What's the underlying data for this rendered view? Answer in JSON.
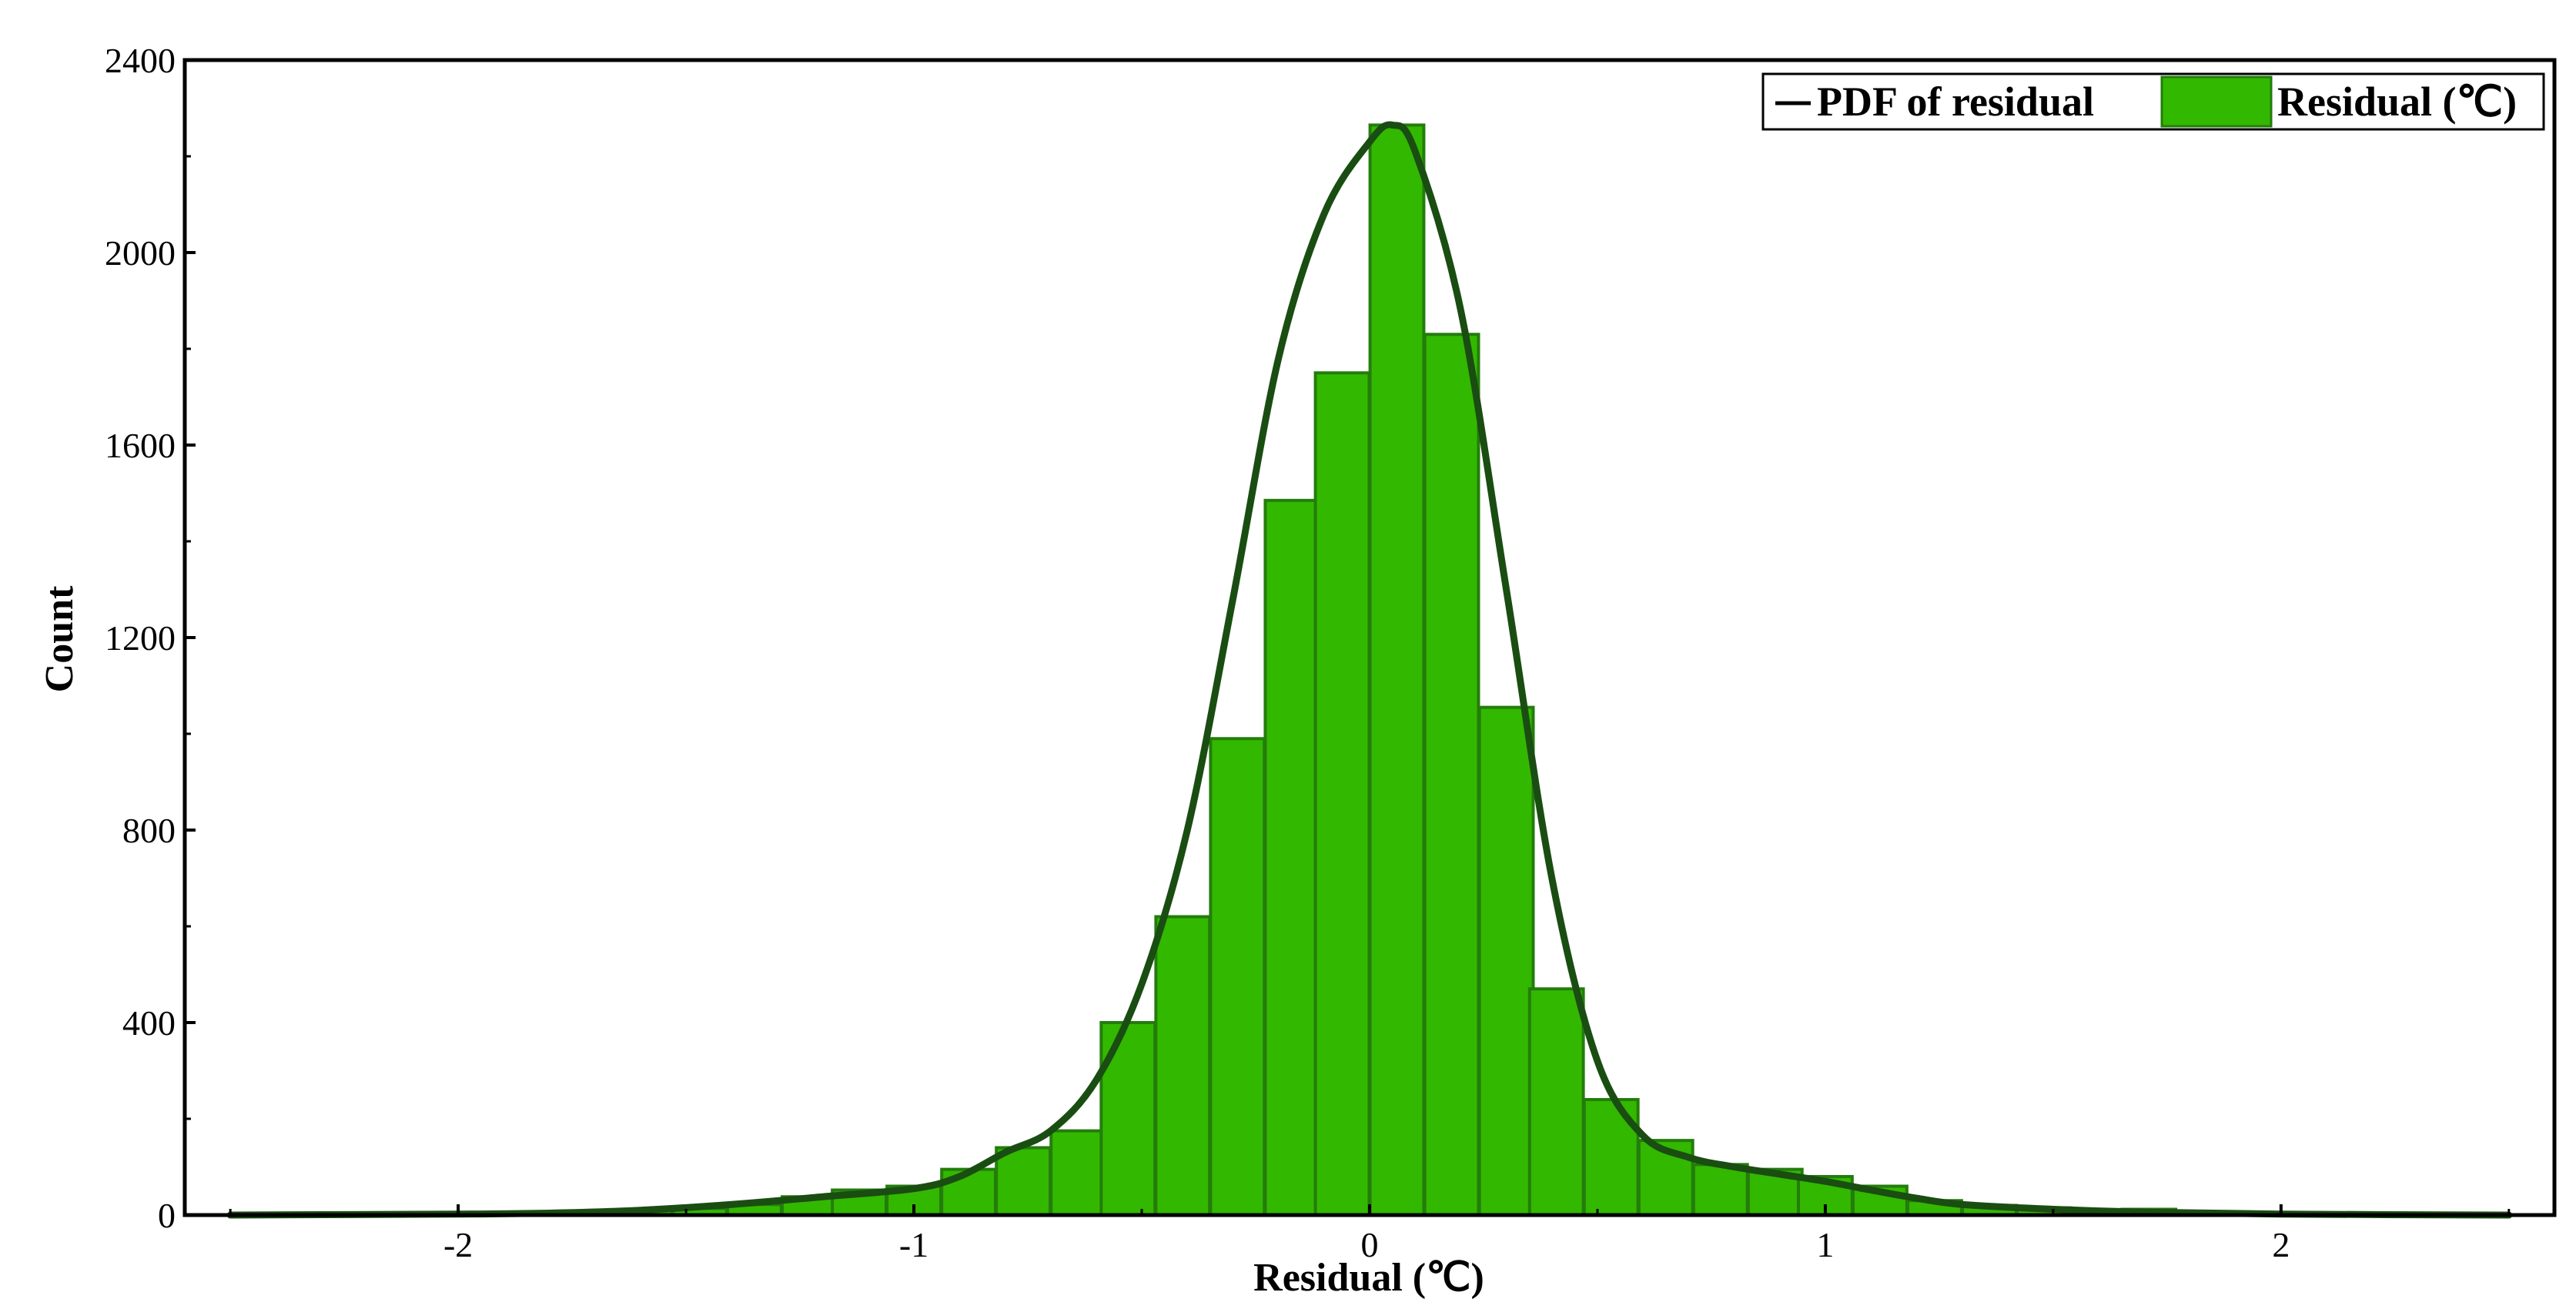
{
  "chart_data": {
    "type": "bar",
    "xlabel": "Residual (℃)",
    "ylabel": "Count",
    "xlim": [
      -2.6,
      2.6
    ],
    "ylim": [
      0,
      2400
    ],
    "xticks": [
      "-2",
      "-1",
      "0",
      "1",
      "2"
    ],
    "yticks": [
      "0",
      "400",
      "800",
      "1200",
      "1600",
      "2000",
      "2400"
    ],
    "grid": false,
    "legend_placement": "top-right",
    "colors": {
      "bar_fill": "#33b800",
      "bar_edge": "#237d0c",
      "pdf_line": "#1a4d12"
    },
    "series": [
      {
        "name": "Residual (℃)",
        "type": "histogram",
        "bin_width": 0.118,
        "bins": [
          {
            "x": -1.59,
            "count": 10
          },
          {
            "x": -1.47,
            "count": 14
          },
          {
            "x": -1.35,
            "count": 22
          },
          {
            "x": -1.23,
            "count": 38
          },
          {
            "x": -1.12,
            "count": 52
          },
          {
            "x": -1.0,
            "count": 60
          },
          {
            "x": -0.88,
            "count": 95
          },
          {
            "x": -0.76,
            "count": 140
          },
          {
            "x": -0.64,
            "count": 175
          },
          {
            "x": -0.53,
            "count": 400
          },
          {
            "x": -0.41,
            "count": 620
          },
          {
            "x": -0.29,
            "count": 990
          },
          {
            "x": -0.17,
            "count": 1485
          },
          {
            "x": -0.06,
            "count": 1750
          },
          {
            "x": 0.06,
            "count": 2265
          },
          {
            "x": 0.18,
            "count": 1830
          },
          {
            "x": 0.3,
            "count": 1055
          },
          {
            "x": 0.41,
            "count": 470
          },
          {
            "x": 0.53,
            "count": 240
          },
          {
            "x": 0.65,
            "count": 155
          },
          {
            "x": 0.77,
            "count": 105
          },
          {
            "x": 0.89,
            "count": 95
          },
          {
            "x": 1.0,
            "count": 80
          },
          {
            "x": 1.12,
            "count": 60
          },
          {
            "x": 1.24,
            "count": 30
          },
          {
            "x": 1.36,
            "count": 20
          },
          {
            "x": 1.48,
            "count": 15
          },
          {
            "x": 1.59,
            "count": 8
          },
          {
            "x": 1.71,
            "count": 12
          },
          {
            "x": 1.83,
            "count": 5
          }
        ]
      },
      {
        "name": "PDF of residual",
        "type": "line",
        "x": [
          -2.5,
          -2.0,
          -1.8,
          -1.6,
          -1.4,
          -1.2,
          -1.0,
          -0.9,
          -0.8,
          -0.7,
          -0.6,
          -0.5,
          -0.4,
          -0.3,
          -0.2,
          -0.1,
          0.0,
          0.05,
          0.1,
          0.2,
          0.3,
          0.4,
          0.5,
          0.6,
          0.7,
          0.8,
          0.9,
          1.0,
          1.1,
          1.2,
          1.3,
          1.5,
          1.7,
          2.0,
          2.5
        ],
        "y": [
          0,
          2,
          4,
          10,
          22,
          38,
          55,
          80,
          130,
          175,
          280,
          480,
          800,
          1280,
          1780,
          2080,
          2230,
          2265,
          2210,
          1880,
          1300,
          700,
          320,
          165,
          120,
          100,
          85,
          70,
          52,
          35,
          22,
          12,
          6,
          2,
          0
        ]
      }
    ]
  }
}
